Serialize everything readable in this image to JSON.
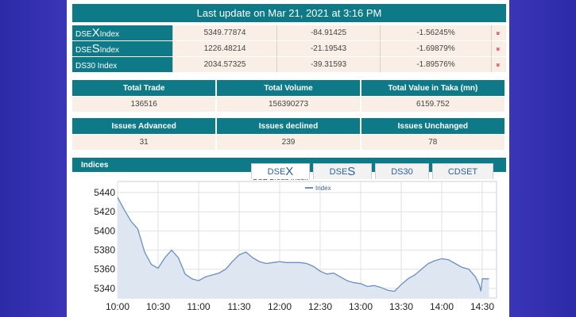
{
  "banner": "Last update on Mar 21, 2021 at 3:16 PM",
  "indices": [
    {
      "prefix": "DSE",
      "big": "X",
      "suffix": " Index",
      "value": "5349.77874",
      "change": "-84.91425",
      "pct": "-1.56245%",
      "arrow": "»"
    },
    {
      "prefix": "DSE",
      "big": "S",
      "suffix": " Index",
      "value": "1226.48214",
      "change": "-21.19543",
      "pct": "-1.69879%",
      "arrow": "»"
    },
    {
      "prefix": "DS30 Index",
      "big": "",
      "suffix": "",
      "value": "2034.57325",
      "change": "-39.31593",
      "pct": "-1.89576%",
      "arrow": "»"
    }
  ],
  "trade": {
    "headers": [
      "Total Trade",
      "Total Volume",
      "Total Value in Taka (mn)"
    ],
    "values": [
      "136516",
      "156390273",
      "6159.752"
    ]
  },
  "issues": {
    "headers": [
      "Issues Advanced",
      "Issues declined",
      "Issues Unchanged"
    ],
    "values": [
      "31",
      "239",
      "78"
    ]
  },
  "indices_title": "Indices",
  "tabs": [
    {
      "prefix": "DSE",
      "big": "X"
    },
    {
      "prefix": "DSE",
      "big": "S"
    },
    {
      "prefix": "DS30",
      "big": ""
    },
    {
      "prefix": "CDSET",
      "big": ""
    }
  ],
  "colors": {
    "header": "#0e7a88",
    "cell": "#f9efe6",
    "line": "#6a8fc0",
    "fill": "#dde6f1",
    "down": "#d0242b"
  },
  "chart_data": {
    "type": "area",
    "title": "DSE Broad Index",
    "legend": "Index",
    "legend_position": "top-center",
    "grid": true,
    "ylim": [
      5330,
      5445
    ],
    "yticks": [
      5440,
      5420,
      5400,
      5380,
      5360,
      5340
    ],
    "xticks": [
      "10:00",
      "10:30",
      "11:00",
      "11:30",
      "12:00",
      "12:30",
      "13:00",
      "13:30",
      "14:00",
      "14:30"
    ],
    "x": [
      "10:00",
      "10:05",
      "10:10",
      "10:15",
      "10:20",
      "10:25",
      "10:30",
      "10:35",
      "10:40",
      "10:45",
      "10:50",
      "10:55",
      "11:00",
      "11:05",
      "11:10",
      "11:15",
      "11:20",
      "11:25",
      "11:30",
      "11:35",
      "11:40",
      "11:45",
      "11:50",
      "11:55",
      "12:00",
      "12:05",
      "12:10",
      "12:15",
      "12:20",
      "12:25",
      "12:30",
      "12:35",
      "12:40",
      "12:45",
      "12:50",
      "12:55",
      "13:00",
      "13:05",
      "13:10",
      "13:15",
      "13:20",
      "13:25",
      "13:30",
      "13:35",
      "13:40",
      "13:45",
      "13:50",
      "13:55",
      "14:00",
      "14:05",
      "14:10",
      "14:15",
      "14:20",
      "14:25",
      "14:28",
      "14:29",
      "14:30",
      "14:35"
    ],
    "series": [
      {
        "name": "Index",
        "values": [
          5435,
          5422,
          5410,
          5402,
          5378,
          5365,
          5361,
          5372,
          5380,
          5372,
          5355,
          5350,
          5348,
          5352,
          5354,
          5356,
          5360,
          5368,
          5375,
          5378,
          5372,
          5368,
          5366,
          5367,
          5368,
          5367,
          5367,
          5367,
          5366,
          5363,
          5358,
          5355,
          5356,
          5352,
          5348,
          5346,
          5345,
          5342,
          5343,
          5341,
          5338,
          5337,
          5344,
          5350,
          5354,
          5360,
          5366,
          5369,
          5371,
          5370,
          5366,
          5362,
          5360,
          5352,
          5343,
          5337,
          5350,
          5350
        ]
      }
    ]
  }
}
